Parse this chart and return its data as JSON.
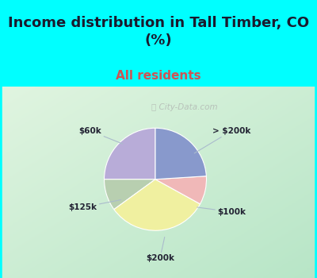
{
  "title": "Income distribution in Tall Timber, CO\n(%)",
  "subtitle": "All residents",
  "title_color": "#1a1a2e",
  "subtitle_color": "#cc5555",
  "labels": [
    "> $200k",
    "$100k",
    "$200k",
    "$125k",
    "$60k"
  ],
  "sizes": [
    25,
    10,
    32,
    9,
    24
  ],
  "colors": [
    "#b8acd8",
    "#b8cfb0",
    "#f0f0a0",
    "#f0b8b8",
    "#8899cc"
  ],
  "bg_top": "#00ffff",
  "watermark": "City-Data.com",
  "label_color": "#222233",
  "startangle": 90,
  "title_fontsize": 13,
  "subtitle_fontsize": 11
}
